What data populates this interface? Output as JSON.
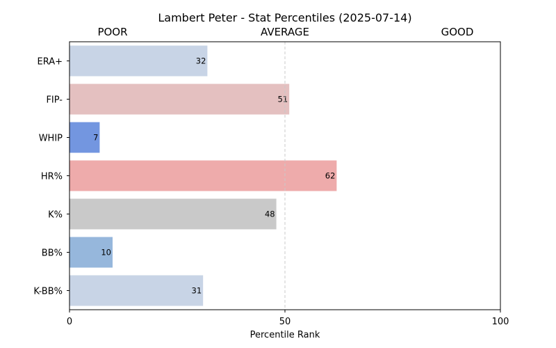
{
  "chart_data": {
    "type": "bar",
    "orientation": "horizontal",
    "title": "Lambert Peter - Stat Percentiles (2025-07-14)",
    "xlabel": "Percentile Rank",
    "ylabel": "",
    "xlim": [
      0,
      100
    ],
    "xticks": [
      0,
      50,
      100
    ],
    "reference_line": 50,
    "zone_labels": [
      "POOR",
      "AVERAGE",
      "GOOD"
    ],
    "categories": [
      "ERA+",
      "FIP-",
      "WHIP",
      "HR%",
      "K%",
      "BB%",
      "K-BB%"
    ],
    "values": [
      32,
      51,
      7,
      62,
      48,
      10,
      31
    ],
    "colors": [
      "#c8d4e6",
      "#e4c0c0",
      "#7396e0",
      "#eeabab",
      "#c9c9c9",
      "#96b7dc",
      "#c8d4e6"
    ],
    "grid": false
  }
}
